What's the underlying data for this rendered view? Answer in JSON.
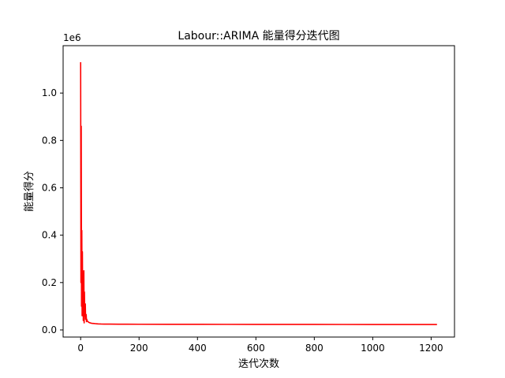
{
  "chart_data": {
    "type": "line",
    "title": "Labour::ARIMA 能量得分迭代图",
    "xlabel": "迭代次数",
    "ylabel": "能量得分",
    "offset_label": "1e6",
    "xlim": [
      -60,
      1280
    ],
    "ylim": [
      -30000,
      1200000
    ],
    "x_ticks": [
      0,
      200,
      400,
      600,
      800,
      1000,
      1200
    ],
    "x_tick_labels": [
      "0",
      "200",
      "400",
      "600",
      "800",
      "1000",
      "1200"
    ],
    "y_ticks": [
      0,
      200000,
      400000,
      600000,
      800000,
      1000000
    ],
    "y_tick_labels": [
      "0.0",
      "0.2",
      "0.4",
      "0.6",
      "0.8",
      "1.0"
    ],
    "grid": false,
    "series": [
      {
        "color": "#ff0000",
        "x": [
          0,
          1,
          2,
          3,
          4,
          5,
          6,
          7,
          8,
          9,
          10,
          11,
          12,
          13,
          14,
          15,
          16,
          17,
          18,
          19,
          20,
          21,
          22,
          23,
          24,
          25,
          26,
          27,
          28,
          30,
          32,
          35,
          38,
          42,
          46,
          50,
          55,
          60,
          70,
          80,
          100,
          130,
          160,
          200,
          300,
          400,
          500,
          600,
          700,
          800,
          900,
          1000,
          1100,
          1220
        ],
        "y": [
          1130000,
          200000,
          860000,
          100000,
          420000,
          60000,
          330000,
          110000,
          200000,
          40000,
          90000,
          250000,
          30000,
          160000,
          70000,
          60000,
          110000,
          45000,
          50000,
          65000,
          35000,
          45000,
          40000,
          38000,
          36000,
          35000,
          34000,
          33000,
          32000,
          31000,
          30000,
          29000,
          28000,
          27500,
          27000,
          26500,
          26000,
          25500,
          25000,
          24800,
          24500,
          24300,
          24200,
          24000,
          23800,
          23700,
          23600,
          23500,
          23400,
          23300,
          23200,
          23100,
          23000,
          22900
        ]
      }
    ]
  }
}
